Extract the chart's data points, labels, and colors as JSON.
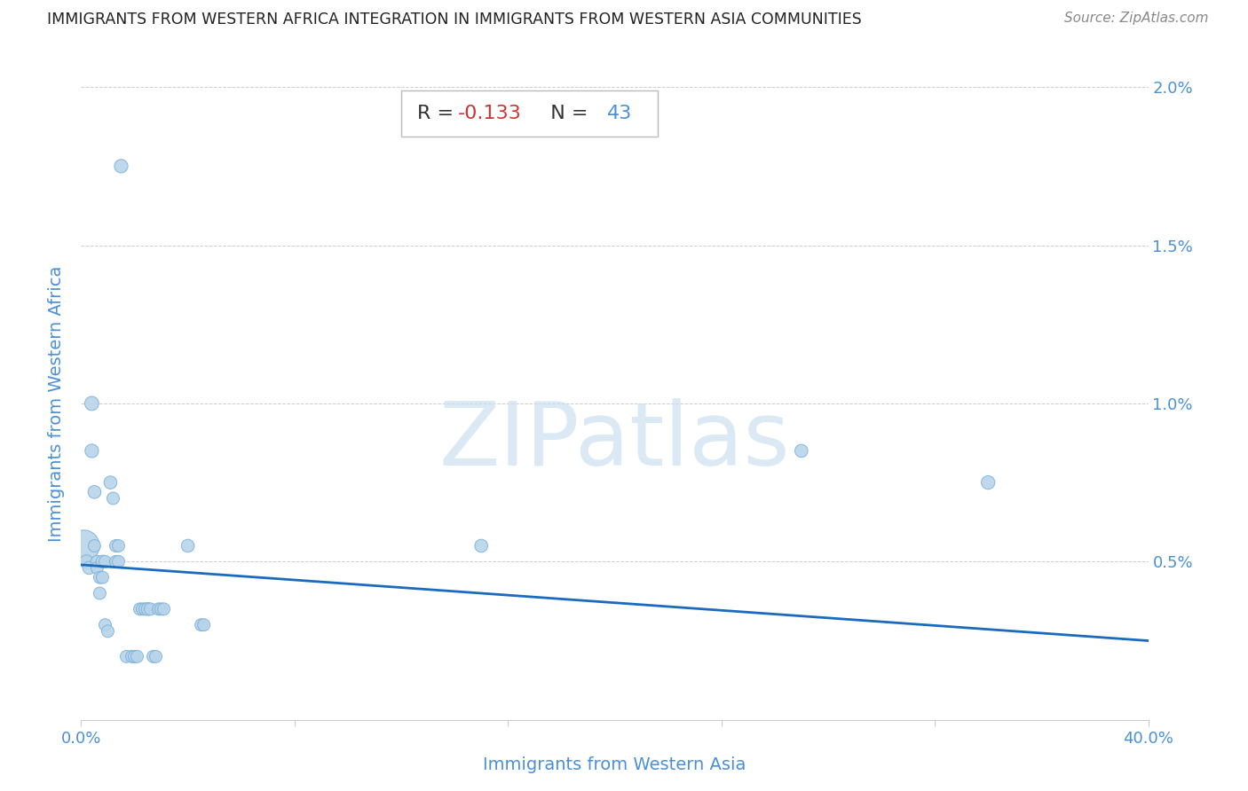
{
  "title": "IMMIGRANTS FROM WESTERN AFRICA INTEGRATION IN IMMIGRANTS FROM WESTERN ASIA COMMUNITIES",
  "source": "Source: ZipAtlas.com",
  "xlabel": "Immigrants from Western Asia",
  "ylabel": "Immigrants from Western Africa",
  "R": -0.133,
  "N": 43,
  "xlim": [
    0.0,
    0.4
  ],
  "ylim": [
    0.0,
    0.02
  ],
  "xtick_positions": [
    0.0,
    0.08,
    0.16,
    0.24,
    0.32,
    0.4
  ],
  "xtick_labels": [
    "0.0%",
    "",
    "",
    "",
    "",
    "40.0%"
  ],
  "ytick_positions": [
    0.0,
    0.005,
    0.01,
    0.015,
    0.02
  ],
  "ytick_labels": [
    "",
    "0.5%",
    "1.0%",
    "1.5%",
    "2.0%"
  ],
  "scatter_fill": "#b8d4ea",
  "scatter_edge": "#7ab0d8",
  "line_color": "#1a6bbf",
  "line_x0": 0.0,
  "line_y0": 0.0049,
  "line_x1": 0.4,
  "line_y1": 0.0025,
  "watermark_text": "ZIPatlas",
  "watermark_color": "#cce0f0",
  "title_color": "#222222",
  "source_color": "#888888",
  "axis_label_color": "#4a90d9",
  "tick_color": "#4a90d9",
  "grid_color": "#cccccc",
  "ann_R_color": "#cc3333",
  "ann_N_color": "#4a90d9",
  "ann_label_color": "#333333",
  "ann_box_edge": "#bbbbbb",
  "points_x": [
    0.001,
    0.002,
    0.003,
    0.004,
    0.004,
    0.005,
    0.005,
    0.006,
    0.006,
    0.007,
    0.007,
    0.008,
    0.008,
    0.009,
    0.009,
    0.01,
    0.011,
    0.012,
    0.013,
    0.013,
    0.014,
    0.014,
    0.015,
    0.017,
    0.019,
    0.02,
    0.021,
    0.022,
    0.023,
    0.024,
    0.025,
    0.026,
    0.027,
    0.028,
    0.029,
    0.03,
    0.031,
    0.04,
    0.045,
    0.046,
    0.15,
    0.27,
    0.34
  ],
  "points_y": [
    0.0055,
    0.005,
    0.0048,
    0.01,
    0.0085,
    0.0072,
    0.0055,
    0.005,
    0.0048,
    0.0045,
    0.004,
    0.005,
    0.0045,
    0.005,
    0.003,
    0.0028,
    0.0075,
    0.007,
    0.0055,
    0.005,
    0.0055,
    0.005,
    0.0175,
    0.002,
    0.002,
    0.002,
    0.002,
    0.0035,
    0.0035,
    0.0035,
    0.0035,
    0.0035,
    0.002,
    0.002,
    0.0035,
    0.0035,
    0.0035,
    0.0055,
    0.003,
    0.003,
    0.0055,
    0.0085,
    0.0075
  ],
  "points_s": [
    650,
    120,
    110,
    130,
    120,
    110,
    100,
    100,
    100,
    100,
    100,
    110,
    100,
    100,
    100,
    100,
    110,
    100,
    100,
    100,
    100,
    100,
    120,
    100,
    100,
    100,
    100,
    100,
    100,
    100,
    110,
    100,
    100,
    100,
    100,
    100,
    100,
    110,
    100,
    100,
    110,
    110,
    120
  ]
}
